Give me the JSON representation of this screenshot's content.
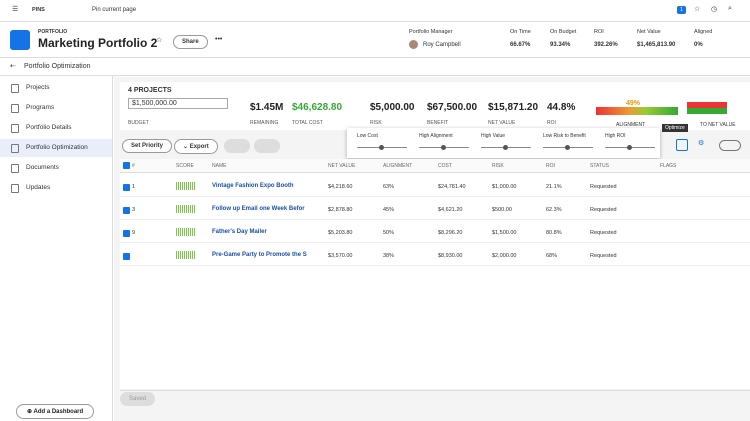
{
  "topbar": {
    "pins": "PINS",
    "pin_current": "Pin current page",
    "badge": "1"
  },
  "header": {
    "label": "PORTFOLIO",
    "title": "Marketing Portfolio 2",
    "share": "Share",
    "manager_label": "Portfolio Manager",
    "manager": "Roy Campbell",
    "stats": [
      {
        "label": "On Time",
        "value": "66.67%"
      },
      {
        "label": "On Budget",
        "value": "93.34%"
      },
      {
        "label": "ROI",
        "value": "392.26%"
      },
      {
        "label": "Net Value",
        "value": "$1,465,813.90"
      },
      {
        "label": "Aligned",
        "value": "0%"
      }
    ]
  },
  "breadcrumb": "Portfolio Optimization",
  "sidebar": {
    "items": [
      "Projects",
      "Programs",
      "Portfolio Details",
      "Portfolio Optimization",
      "Documents",
      "Updates"
    ],
    "add_dashboard": "Add a Dashboard"
  },
  "summary": {
    "count": "4 PROJECTS",
    "budget": "$1,500,000.00",
    "budget_label": "BUDGET",
    "metrics": [
      {
        "value": "$1.45M",
        "label": "REMAINING"
      },
      {
        "value": "$46,628.80",
        "label": "TOTAL COST"
      },
      {
        "value": "$5,000.00",
        "label": "RISK"
      },
      {
        "value": "$67,500.00",
        "label": "BENEFIT"
      },
      {
        "value": "$15,871.20",
        "label": "NET VALUE"
      },
      {
        "value": "44.8%",
        "label": "ROI"
      }
    ],
    "gauge_value": "49%",
    "gauge_label": "ALIGNMENT",
    "gauge2_label": "TO NET VALUE"
  },
  "toolbar": {
    "set_priority": "Set Priority",
    "export": "Export",
    "tooltip": "Optimize"
  },
  "sliders": [
    "Low Cost",
    "High Alignment",
    "High Value",
    "Low Risk to Benefit",
    "High ROI"
  ],
  "table": {
    "headers": [
      "#",
      "SCORE",
      "NAME",
      "NET VALUE",
      "ALIGNMENT",
      "COST",
      "RISK",
      "ROI",
      "STATUS",
      "FLAGS"
    ],
    "rows": [
      {
        "num": "1",
        "name": "Vintage Fashion Expo Booth",
        "net_value": "$4,218.60",
        "alignment": "63%",
        "cost": "$24,781.40",
        "risk": "$1,000.00",
        "roi": "21.1%",
        "status": "Requested"
      },
      {
        "num": "3",
        "name": "Follow up Email one Week Befor",
        "net_value": "$2,878.80",
        "alignment": "45%",
        "cost": "$4,621.20",
        "risk": "$500.00",
        "roi": "62.3%",
        "status": "Requested"
      },
      {
        "num": "9",
        "name": "Father's Day Mailer",
        "net_value": "$5,203.80",
        "alignment": "50%",
        "cost": "$8,296.20",
        "risk": "$1,500.00",
        "roi": "80.8%",
        "status": "Requested"
      },
      {
        "name": "Pre-Game Party to Promote the S",
        "net_value": "$3,570.00",
        "alignment": "38%",
        "cost": "$8,930.00",
        "risk": "$2,000.00",
        "roi": "68%",
        "status": "Requested"
      }
    ]
  },
  "footer": {
    "saved": "Saved"
  }
}
